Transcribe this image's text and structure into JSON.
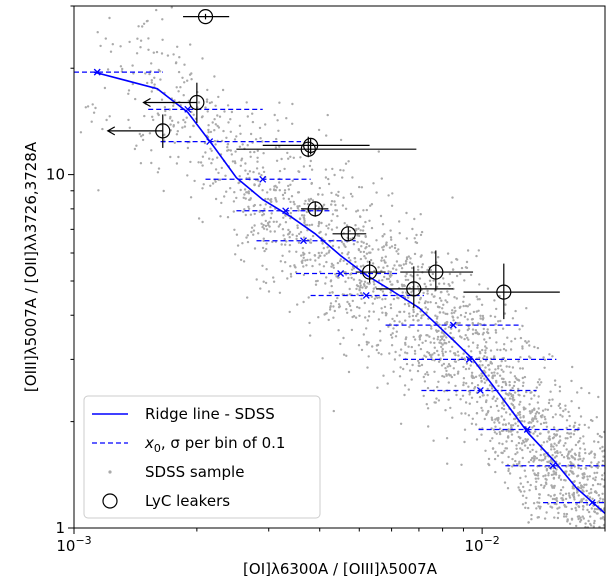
{
  "chart_data": {
    "type": "scatter",
    "title": "",
    "xlabel": "[OI]λ6300A / [OIII]λ5007A",
    "ylabel": "[OIII]λ5007A / [OII]λλ3726,3728A",
    "xscale": "log",
    "yscale": "log",
    "xlim": [
      0.001,
      0.02
    ],
    "ylim": [
      1,
      30
    ],
    "x_ticks": [
      {
        "value": 0.001,
        "label": "10",
        "exp": "−3"
      },
      {
        "value": 0.01,
        "label": "10",
        "exp": "−2"
      }
    ],
    "y_ticks": [
      {
        "value": 1,
        "label": "1"
      },
      {
        "value": 10,
        "label": "10"
      }
    ],
    "grid": false,
    "legend": {
      "position": "lower-left",
      "entries": [
        {
          "label": "Ridge line - SDSS",
          "marker": "solid-line",
          "color": "#0000ff"
        },
        {
          "label_prefix": "x",
          "label_sub": "0",
          "label_suffix": ", σ per bin of 0.1",
          "marker": "dashed-line",
          "color": "#0000ff"
        },
        {
          "label": "SDSS sample",
          "marker": "gray-dot",
          "color": "#aaaaaa"
        },
        {
          "label": "LyC leakers",
          "marker": "open-circle",
          "color": "#000000"
        }
      ]
    },
    "series": [
      {
        "name": "Ridge line - SDSS",
        "style": "line",
        "color": "#0000ff",
        "x": [
          0.00112,
          0.0016,
          0.0019,
          0.0022,
          0.0025,
          0.0029,
          0.0034,
          0.0039,
          0.0045,
          0.0052,
          0.006,
          0.007,
          0.0085,
          0.0095,
          0.011,
          0.013,
          0.015,
          0.017,
          0.02
        ],
        "y": [
          19.5,
          17.5,
          15.0,
          12.0,
          9.8,
          8.5,
          7.6,
          6.8,
          5.9,
          5.2,
          4.7,
          4.2,
          3.4,
          3.0,
          2.4,
          1.85,
          1.55,
          1.3,
          1.1
        ]
      },
      {
        "name": "x0, sigma per bin of 0.1",
        "style": "dashed-errorbar",
        "color": "#0000ff",
        "bins": [
          {
            "x": 0.00114,
            "y": 19.5,
            "xlo": 0.001,
            "xhi": 0.00165
          },
          {
            "x": 0.0019,
            "y": 15.3,
            "xlo": 0.00152,
            "xhi": 0.0029
          },
          {
            "x": 0.00215,
            "y": 12.4,
            "xlo": 0.00163,
            "xhi": 0.0036
          },
          {
            "x": 0.0029,
            "y": 9.7,
            "xlo": 0.0021,
            "xhi": 0.0038
          },
          {
            "x": 0.0033,
            "y": 7.9,
            "xlo": 0.0025,
            "xhi": 0.0043
          },
          {
            "x": 0.00365,
            "y": 6.5,
            "xlo": 0.0028,
            "xhi": 0.0049
          },
          {
            "x": 0.0045,
            "y": 5.25,
            "xlo": 0.0035,
            "xhi": 0.0062
          },
          {
            "x": 0.0052,
            "y": 4.55,
            "xlo": 0.0038,
            "xhi": 0.0072
          },
          {
            "x": 0.0085,
            "y": 3.75,
            "xlo": 0.0058,
            "xhi": 0.0125
          },
          {
            "x": 0.0093,
            "y": 3.0,
            "xlo": 0.0064,
            "xhi": 0.0152
          },
          {
            "x": 0.0099,
            "y": 2.45,
            "xlo": 0.0071,
            "xhi": 0.0136
          },
          {
            "x": 0.0129,
            "y": 1.9,
            "xlo": 0.0098,
            "xhi": 0.0175
          },
          {
            "x": 0.0149,
            "y": 1.5,
            "xlo": 0.0114,
            "xhi": 0.02
          },
          {
            "x": 0.0186,
            "y": 1.18,
            "xlo": 0.0141,
            "xhi": 0.02
          }
        ]
      },
      {
        "name": "LyC leakers",
        "style": "open-circle-errorbar",
        "color": "#000000",
        "points": [
          {
            "x": 0.0021,
            "y": 28.0,
            "xlo": 0.00185,
            "xhi": 0.0024,
            "ylo": 27.5,
            "yhi": 28.5
          },
          {
            "x": 0.002,
            "y": 16.0,
            "ylo": 14.0,
            "yhi": 18.2,
            "upper_limit_x": true,
            "arrow_to": 0.00148
          },
          {
            "x": 0.00165,
            "y": 13.3,
            "ylo": 11.9,
            "yhi": 14.8,
            "upper_limit_x": true,
            "arrow_to": 0.00121
          },
          {
            "x": 0.0038,
            "y": 12.1,
            "xlo": 0.0029,
            "xhi": 0.0053,
            "ylo": 11.4,
            "yhi": 12.7
          },
          {
            "x": 0.00375,
            "y": 11.8,
            "xlo": 0.0025,
            "xhi": 0.0069,
            "ylo": 11.2,
            "yhi": 12.8
          },
          {
            "x": 0.0039,
            "y": 8.0,
            "xlo": 0.0036,
            "xhi": 0.0042,
            "ylo": 7.6,
            "yhi": 8.4
          },
          {
            "x": 0.0047,
            "y": 6.8,
            "xlo": 0.0043,
            "xhi": 0.0052,
            "ylo": 6.5,
            "yhi": 7.1
          },
          {
            "x": 0.0053,
            "y": 5.3,
            "xlo": 0.0049,
            "xhi": 0.0058,
            "ylo": 4.95,
            "yhi": 5.7
          },
          {
            "x": 0.0077,
            "y": 5.3,
            "xlo": 0.0063,
            "xhi": 0.0095,
            "ylo": 4.7,
            "yhi": 6.1
          },
          {
            "x": 0.0068,
            "y": 4.75,
            "xlo": 0.0055,
            "xhi": 0.0085,
            "ylo": 4.2,
            "yhi": 5.5
          },
          {
            "x": 0.0113,
            "y": 4.65,
            "xlo": 0.009,
            "xhi": 0.0155,
            "ylo": 3.9,
            "yhi": 5.6
          }
        ]
      },
      {
        "name": "SDSS sample",
        "style": "scatter-dots",
        "color": "#aaaaaa",
        "count": 2600,
        "seed": 7,
        "note_distribution": "log-normal scatter about ridge line, denser at high x"
      }
    ]
  }
}
